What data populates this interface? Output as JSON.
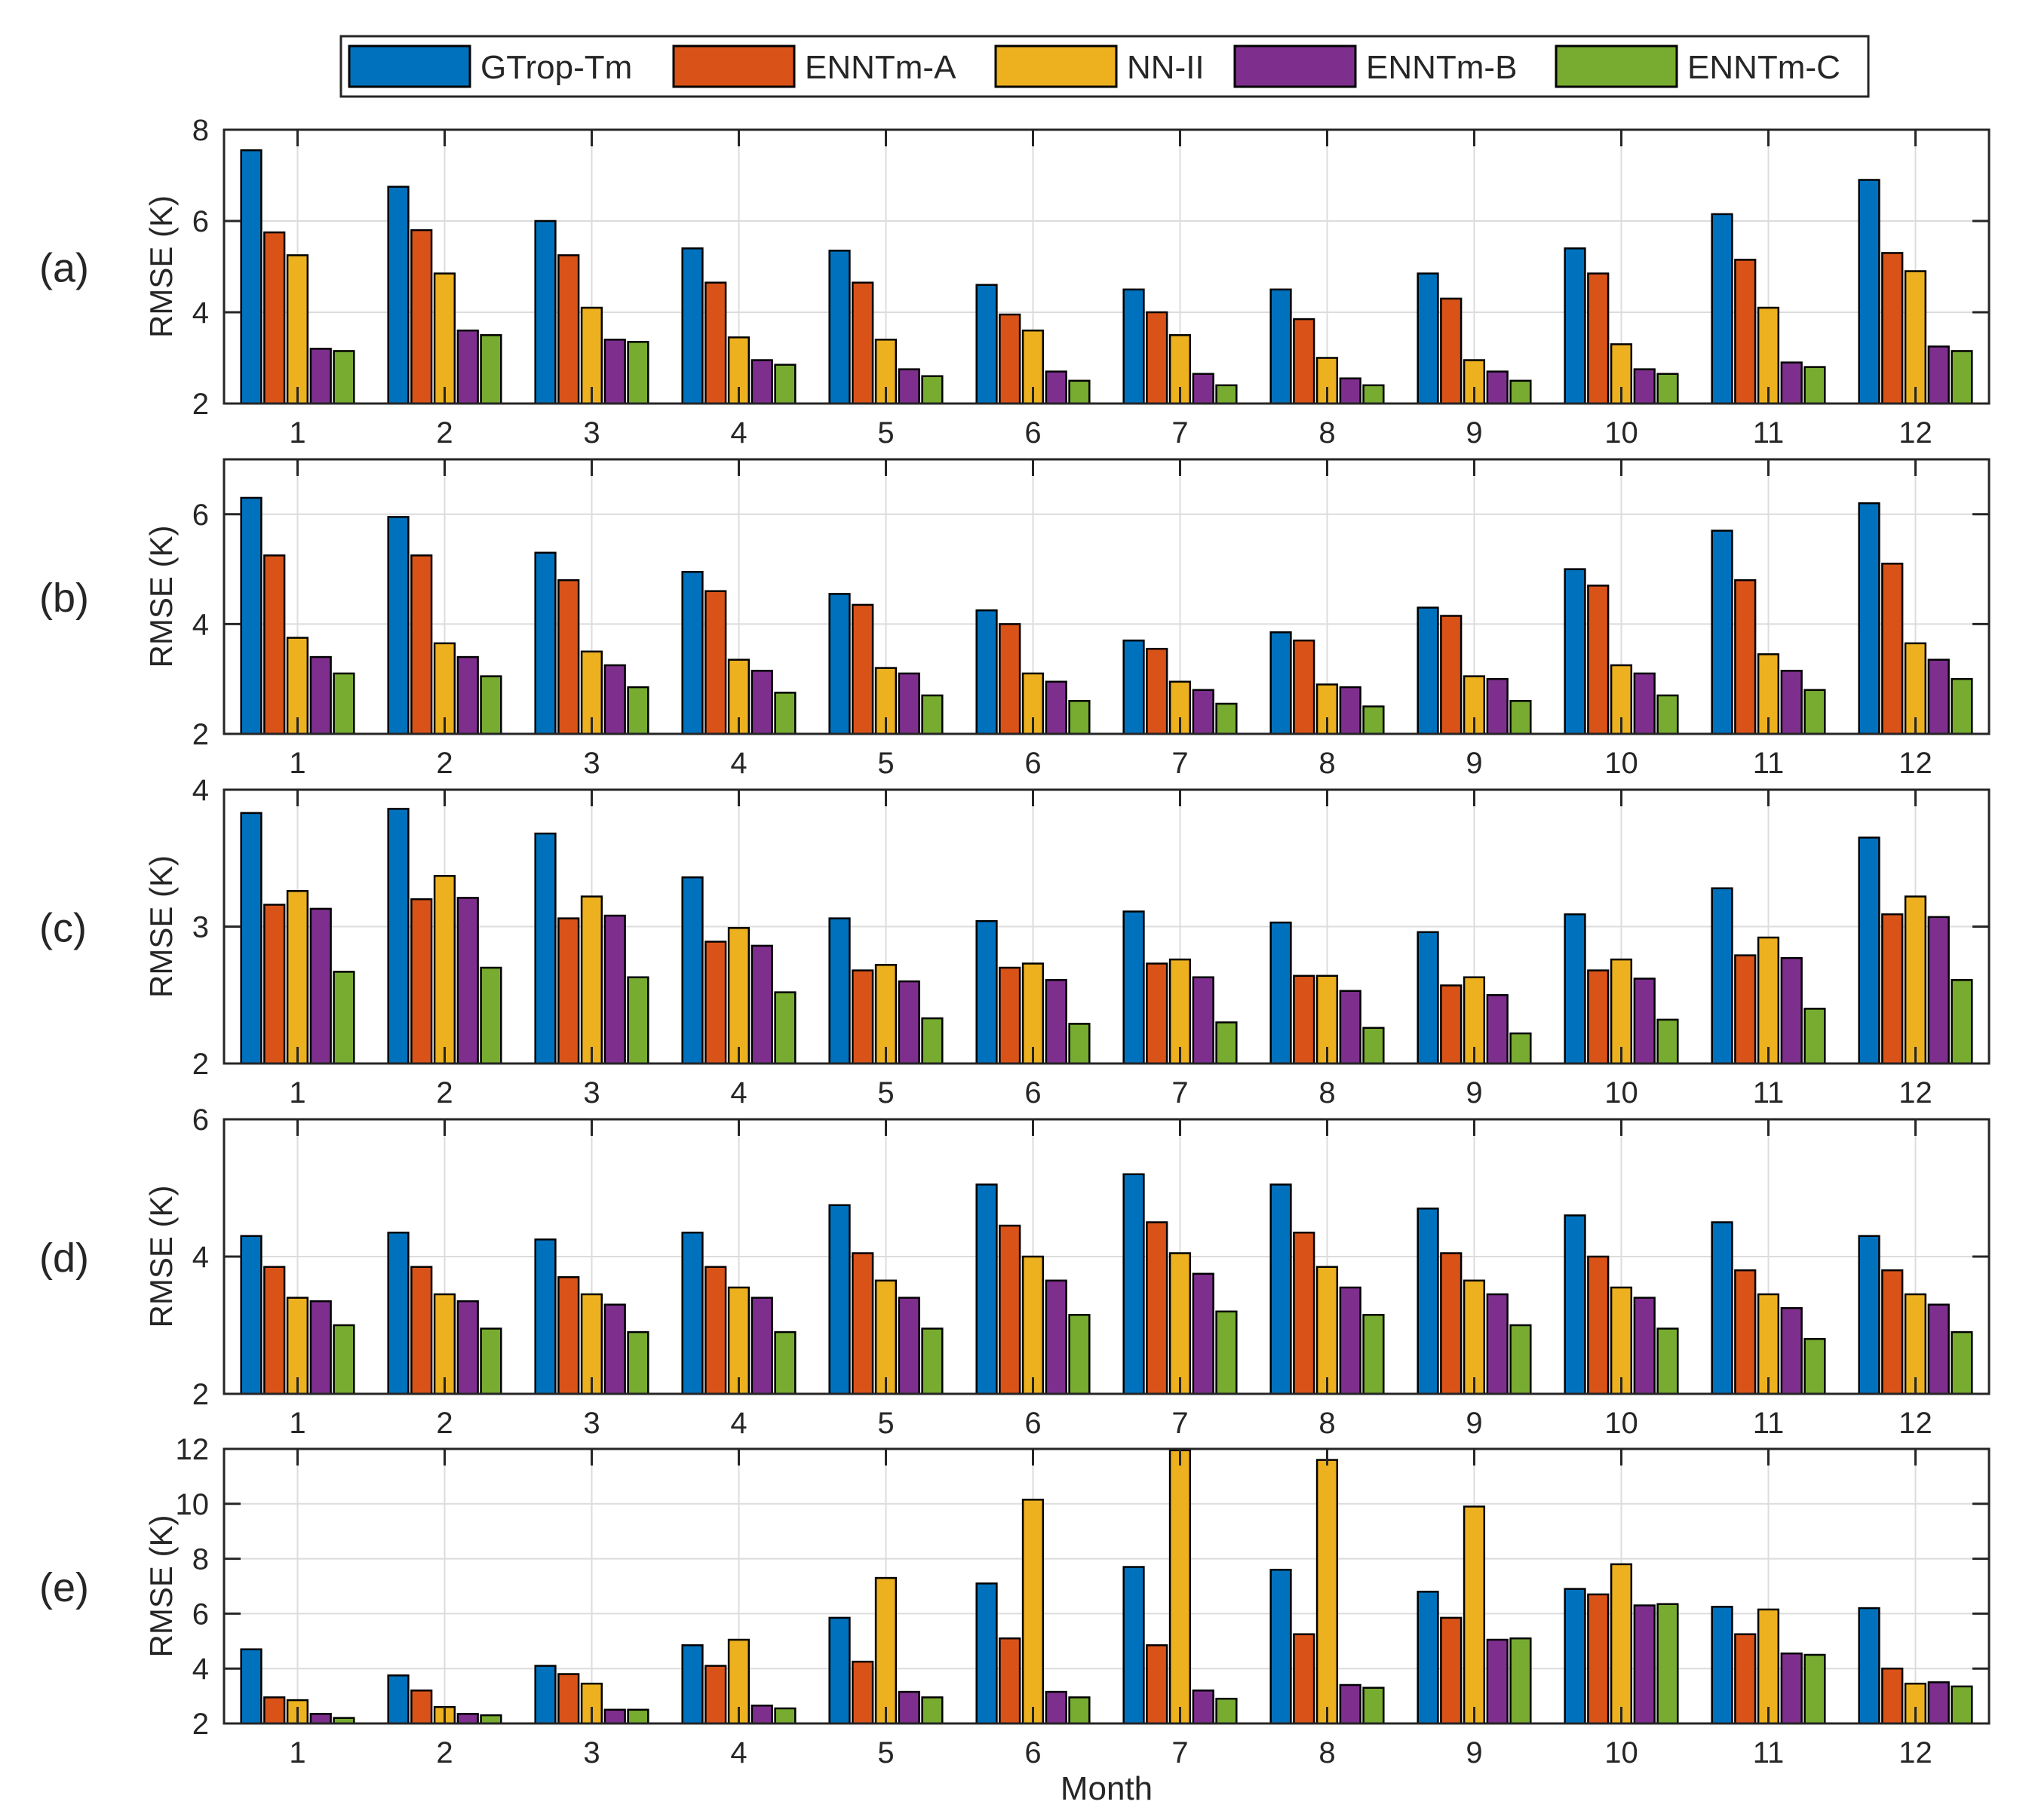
{
  "figure": {
    "xlabel": "Month",
    "ylabel": "RMSE (K)"
  },
  "legend": {
    "placement": "top-center",
    "entries": [
      {
        "name": "GTrop-Tm",
        "color": "#0072BD"
      },
      {
        "name": "ENNTm-A",
        "color": "#D95319"
      },
      {
        "name": "NN-II",
        "color": "#EDB120"
      },
      {
        "name": "ENNTm-B",
        "color": "#7E2F8E"
      },
      {
        "name": "ENNTm-C",
        "color": "#77AC30"
      }
    ]
  },
  "chart_data": [
    {
      "type": "bar",
      "panel_label": "(a)",
      "categories": [
        "1",
        "2",
        "3",
        "4",
        "5",
        "6",
        "7",
        "8",
        "9",
        "10",
        "11",
        "12"
      ],
      "ylim": [
        2,
        8
      ],
      "yticks": [
        2,
        4,
        6,
        8
      ],
      "ylabel": "RMSE (K)",
      "grid": true,
      "series": [
        {
          "name": "GTrop-Tm",
          "values": [
            7.55,
            6.75,
            6.0,
            5.4,
            5.35,
            4.6,
            4.5,
            4.5,
            4.85,
            5.4,
            6.15,
            6.9
          ]
        },
        {
          "name": "ENNTm-A",
          "values": [
            5.75,
            5.8,
            5.25,
            4.65,
            4.65,
            3.95,
            4.0,
            3.85,
            4.3,
            4.85,
            5.15,
            5.3
          ]
        },
        {
          "name": "NN-II",
          "values": [
            5.25,
            4.85,
            4.1,
            3.45,
            3.4,
            3.6,
            3.5,
            3.0,
            2.95,
            3.3,
            4.1,
            4.9
          ]
        },
        {
          "name": "ENNTm-B",
          "values": [
            3.2,
            3.6,
            3.4,
            2.95,
            2.75,
            2.7,
            2.65,
            2.55,
            2.7,
            2.75,
            2.9,
            3.25
          ]
        },
        {
          "name": "ENNTm-C",
          "values": [
            3.15,
            3.5,
            3.35,
            2.85,
            2.6,
            2.5,
            2.4,
            2.4,
            2.5,
            2.65,
            2.8,
            3.15
          ]
        }
      ]
    },
    {
      "type": "bar",
      "panel_label": "(b)",
      "categories": [
        "1",
        "2",
        "3",
        "4",
        "5",
        "6",
        "7",
        "8",
        "9",
        "10",
        "11",
        "12"
      ],
      "ylim": [
        2,
        7
      ],
      "yticks": [
        2,
        4,
        6
      ],
      "ylabel": "RMSE (K)",
      "grid": true,
      "series": [
        {
          "name": "GTrop-Tm",
          "values": [
            6.3,
            5.95,
            5.3,
            4.95,
            4.55,
            4.25,
            3.7,
            3.85,
            4.3,
            5.0,
            5.7,
            6.2
          ]
        },
        {
          "name": "ENNTm-A",
          "values": [
            5.25,
            5.25,
            4.8,
            4.6,
            4.35,
            4.0,
            3.55,
            3.7,
            4.15,
            4.7,
            4.8,
            5.1
          ]
        },
        {
          "name": "NN-II",
          "values": [
            3.75,
            3.65,
            3.5,
            3.35,
            3.2,
            3.1,
            2.95,
            2.9,
            3.05,
            3.25,
            3.45,
            3.65
          ]
        },
        {
          "name": "ENNTm-B",
          "values": [
            3.4,
            3.4,
            3.25,
            3.15,
            3.1,
            2.95,
            2.8,
            2.85,
            3.0,
            3.1,
            3.15,
            3.35
          ]
        },
        {
          "name": "ENNTm-C",
          "values": [
            3.1,
            3.05,
            2.85,
            2.75,
            2.7,
            2.6,
            2.55,
            2.5,
            2.6,
            2.7,
            2.8,
            3.0
          ]
        }
      ]
    },
    {
      "type": "bar",
      "panel_label": "(c)",
      "categories": [
        "1",
        "2",
        "3",
        "4",
        "5",
        "6",
        "7",
        "8",
        "9",
        "10",
        "11",
        "12"
      ],
      "ylim": [
        2,
        4
      ],
      "yticks": [
        2,
        3,
        4
      ],
      "ylabel": "RMSE (K)",
      "grid": true,
      "series": [
        {
          "name": "GTrop-Tm",
          "values": [
            3.83,
            3.86,
            3.68,
            3.36,
            3.06,
            3.04,
            3.11,
            3.03,
            2.96,
            3.09,
            3.28,
            3.65
          ]
        },
        {
          "name": "ENNTm-A",
          "values": [
            3.16,
            3.2,
            3.06,
            2.89,
            2.68,
            2.7,
            2.73,
            2.64,
            2.57,
            2.68,
            2.79,
            3.09
          ]
        },
        {
          "name": "NN-II",
          "values": [
            3.26,
            3.37,
            3.22,
            2.99,
            2.72,
            2.73,
            2.76,
            2.64,
            2.63,
            2.76,
            2.92,
            3.22
          ]
        },
        {
          "name": "ENNTm-B",
          "values": [
            3.13,
            3.21,
            3.08,
            2.86,
            2.6,
            2.61,
            2.63,
            2.53,
            2.5,
            2.62,
            2.77,
            3.07
          ]
        },
        {
          "name": "ENNTm-C",
          "values": [
            2.67,
            2.7,
            2.63,
            2.52,
            2.33,
            2.29,
            2.3,
            2.26,
            2.22,
            2.32,
            2.4,
            2.61
          ]
        }
      ]
    },
    {
      "type": "bar",
      "panel_label": "(d)",
      "categories": [
        "1",
        "2",
        "3",
        "4",
        "5",
        "6",
        "7",
        "8",
        "9",
        "10",
        "11",
        "12"
      ],
      "ylim": [
        2,
        6
      ],
      "yticks": [
        2,
        4,
        6
      ],
      "ylabel": "RMSE (K)",
      "grid": true,
      "series": [
        {
          "name": "GTrop-Tm",
          "values": [
            4.3,
            4.35,
            4.25,
            4.35,
            4.75,
            5.05,
            5.2,
            5.05,
            4.7,
            4.6,
            4.5,
            4.3
          ]
        },
        {
          "name": "ENNTm-A",
          "values": [
            3.85,
            3.85,
            3.7,
            3.85,
            4.05,
            4.45,
            4.5,
            4.35,
            4.05,
            4.0,
            3.8,
            3.8
          ]
        },
        {
          "name": "NN-II",
          "values": [
            3.4,
            3.45,
            3.45,
            3.55,
            3.65,
            4.0,
            4.05,
            3.85,
            3.65,
            3.55,
            3.45,
            3.45
          ]
        },
        {
          "name": "ENNTm-B",
          "values": [
            3.35,
            3.35,
            3.3,
            3.4,
            3.4,
            3.65,
            3.75,
            3.55,
            3.45,
            3.4,
            3.25,
            3.3
          ]
        },
        {
          "name": "ENNTm-C",
          "values": [
            3.0,
            2.95,
            2.9,
            2.9,
            2.95,
            3.15,
            3.2,
            3.15,
            3.0,
            2.95,
            2.8,
            2.9
          ]
        }
      ]
    },
    {
      "type": "bar",
      "panel_label": "(e)",
      "categories": [
        "1",
        "2",
        "3",
        "4",
        "5",
        "6",
        "7",
        "8",
        "9",
        "10",
        "11",
        "12"
      ],
      "ylim": [
        2,
        12
      ],
      "yticks": [
        2,
        4,
        6,
        8,
        10,
        12
      ],
      "ylabel": "RMSE (K)",
      "xlabel": "Month",
      "grid": true,
      "series": [
        {
          "name": "GTrop-Tm",
          "values": [
            4.7,
            3.75,
            4.1,
            4.85,
            5.85,
            7.1,
            7.7,
            7.6,
            6.8,
            6.9,
            6.25,
            6.2
          ]
        },
        {
          "name": "ENNTm-A",
          "values": [
            2.95,
            3.2,
            3.8,
            4.1,
            4.25,
            5.1,
            4.85,
            5.25,
            5.85,
            6.7,
            5.25,
            4.0
          ]
        },
        {
          "name": "NN-II",
          "values": [
            2.85,
            2.6,
            3.45,
            5.05,
            7.3,
            10.15,
            11.95,
            11.6,
            9.9,
            7.8,
            6.15,
            3.45
          ]
        },
        {
          "name": "ENNTm-B",
          "values": [
            2.35,
            2.35,
            2.5,
            2.65,
            3.15,
            3.15,
            3.2,
            3.4,
            5.05,
            6.3,
            4.55,
            3.5
          ]
        },
        {
          "name": "ENNTm-C",
          "values": [
            2.2,
            2.3,
            2.5,
            2.55,
            2.95,
            2.95,
            2.9,
            3.3,
            5.1,
            6.35,
            4.5,
            3.35
          ]
        }
      ]
    }
  ]
}
